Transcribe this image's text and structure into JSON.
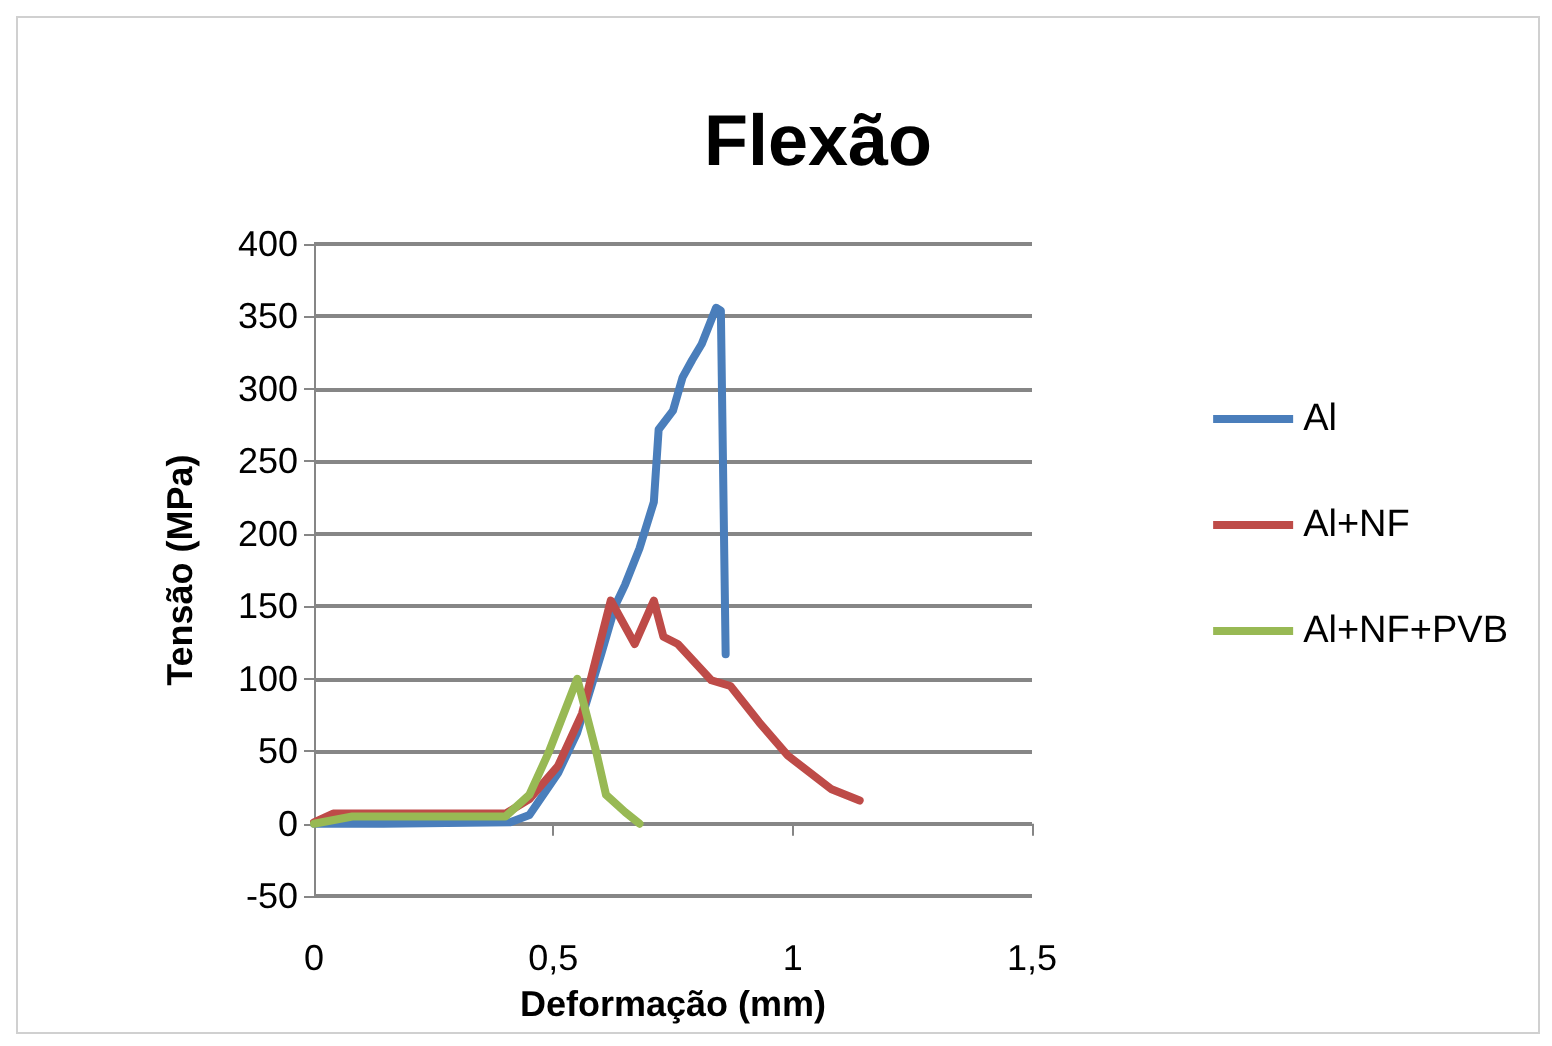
{
  "chart_data": {
    "type": "line",
    "title": "Flexão",
    "xlabel": "Deformação (mm)",
    "ylabel": "Tensão (MPa)",
    "xlim": [
      0,
      1.5
    ],
    "xticks": [
      {
        "value": 0,
        "label": "0"
      },
      {
        "value": 0.5,
        "label": "0,5"
      },
      {
        "value": 1,
        "label": "1"
      },
      {
        "value": 1.5,
        "label": "1,5"
      }
    ],
    "ylim": [
      -50,
      400
    ],
    "yticks": [
      -50,
      0,
      50,
      100,
      150,
      200,
      250,
      300,
      350,
      400
    ],
    "grid": "y",
    "legend": "right",
    "marker": "none",
    "line_style": "solid",
    "series": [
      {
        "name": "Al",
        "color": "#4a7ebb",
        "x": [
          0,
          0.145,
          0.41,
          0.45,
          0.51,
          0.55,
          0.6,
          0.63,
          0.65,
          0.68,
          0.71,
          0.72,
          0.75,
          0.77,
          0.79,
          0.81,
          0.84,
          0.85,
          0.86
        ],
        "values": [
          0,
          0,
          1,
          6,
          35,
          63,
          117,
          151,
          165,
          190,
          222,
          272,
          285,
          308,
          320,
          331,
          356,
          354,
          117
        ]
      },
      {
        "name": "Al+NF",
        "color": "#be4b48",
        "x": [
          0,
          0.04,
          0.1,
          0.4,
          0.45,
          0.51,
          0.56,
          0.62,
          0.67,
          0.71,
          0.73,
          0.76,
          0.83,
          0.87,
          0.93,
          0.99,
          1.08,
          1.14
        ],
        "values": [
          1,
          7,
          7,
          7,
          17,
          40,
          76,
          154,
          124,
          154,
          129,
          124,
          99,
          95,
          70,
          47,
          24,
          16
        ]
      },
      {
        "name": "Al+NF+PVB",
        "color": "#98b954",
        "x": [
          0,
          0.08,
          0.4,
          0.45,
          0.49,
          0.55,
          0.59,
          0.61,
          0.65,
          0.68
        ],
        "values": [
          0,
          5,
          5,
          20,
          49,
          100,
          49,
          20,
          8,
          0
        ]
      }
    ]
  }
}
